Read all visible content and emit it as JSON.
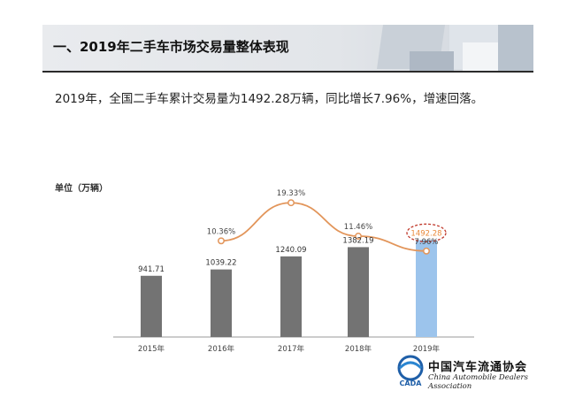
{
  "header": {
    "title": "一、2019年二手车市场交易量整体表现"
  },
  "summary": "2019年，全国二手车累计交易量为1492.28万辆，同比增长7.96%，增速回落。",
  "chart_data": {
    "type": "bar",
    "unit_label": "单位（万辆）",
    "categories": [
      "2015年",
      "2016年",
      "2017年",
      "2018年",
      "2019年"
    ],
    "values": [
      941.71,
      1039.22,
      1240.09,
      1382.19,
      1492.28
    ],
    "value_labels": [
      "941.71",
      "1039.22",
      "1240.09",
      "1382.19",
      "1492.28"
    ],
    "growth": {
      "type": "line",
      "x": [
        "2016年",
        "2017年",
        "2018年",
        "2019年"
      ],
      "values": [
        10.36,
        19.33,
        11.46,
        7.96
      ],
      "labels": [
        "10.36%",
        "19.33%",
        "11.46%",
        "7.96%"
      ]
    },
    "colors": {
      "bar": "#737373",
      "highlight_bar": "#9cc4ec",
      "line": "#e2955a",
      "highlight_label": "#e98a3b",
      "circle": "#c0392b"
    },
    "highlight_category": "2019年",
    "ylim": [
      0,
      1600
    ]
  },
  "logo": {
    "cn": "中国汽车流通协会",
    "en": "China Automobile Dealers Association",
    "mark": "CADA"
  }
}
